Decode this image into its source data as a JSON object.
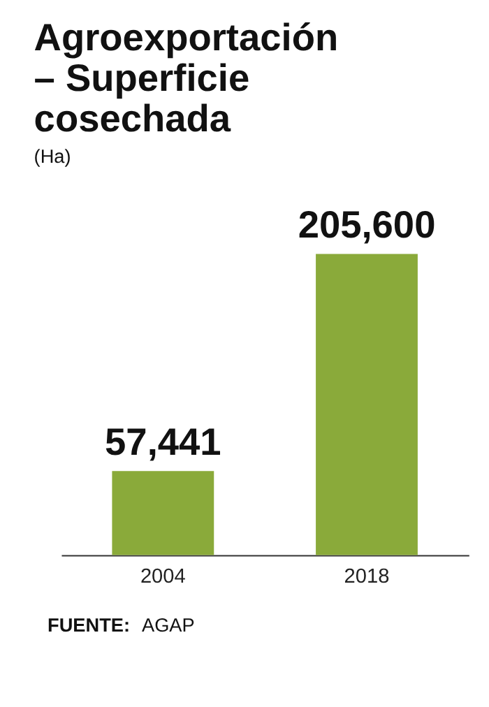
{
  "chart_data": {
    "type": "bar",
    "title": "Agroexportación – Superficie cosechada",
    "subtitle": "(Ha)",
    "categories": [
      "2004",
      "2018"
    ],
    "values": [
      57441,
      205600
    ],
    "color": "#8aaa3a",
    "value_labels": [
      "57,441",
      "205,600"
    ],
    "grid": false,
    "annotations": [
      "FUENTE: AGAP"
    ]
  }
}
